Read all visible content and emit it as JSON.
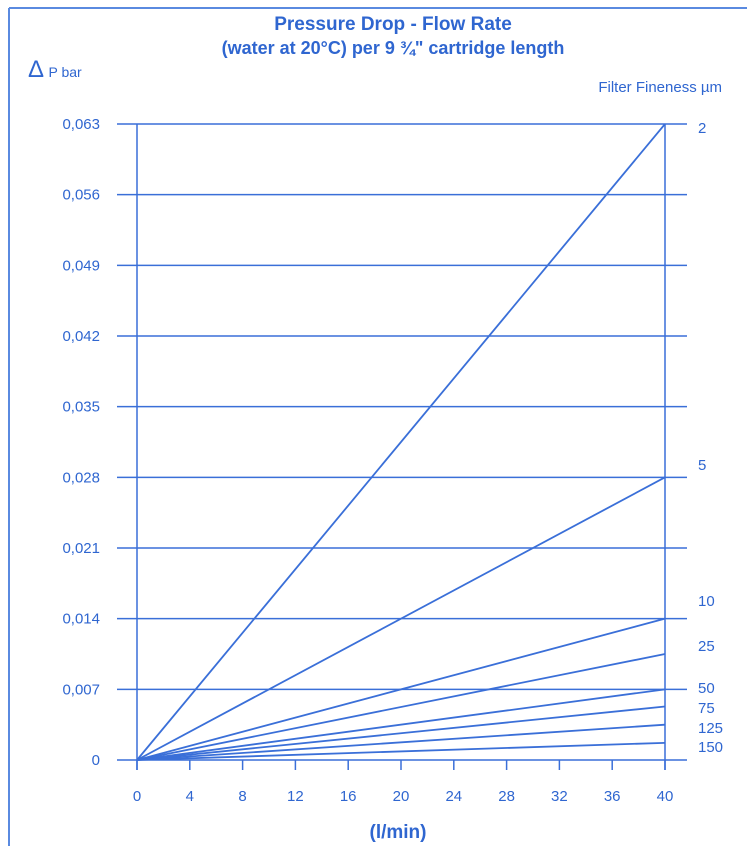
{
  "chart_data": {
    "type": "line",
    "title_line1": "Pressure Drop - Flow Rate",
    "title_line2": "(water at 20°C) per 9 ¾\" cartridge length",
    "ylabel_symbol": "Δ",
    "ylabel_text": "P bar",
    "xlabel": "(l/min)",
    "legend_title": "Filter Fineness µm",
    "xlim": [
      0,
      40
    ],
    "ylim": [
      0,
      0.063
    ],
    "x_ticks": [
      0,
      4,
      8,
      12,
      16,
      20,
      24,
      28,
      32,
      36,
      40
    ],
    "x_tick_labels": [
      "0",
      "4",
      "8",
      "12",
      "16",
      "20",
      "24",
      "28",
      "32",
      "36",
      "40"
    ],
    "y_ticks": [
      0,
      0.007,
      0.014,
      0.021,
      0.028,
      0.035,
      0.042,
      0.049,
      0.056,
      0.063
    ],
    "y_tick_labels": [
      "0",
      "0,007",
      "0,014",
      "0,021",
      "0,028",
      "0,035",
      "0,042",
      "0,049",
      "0,056",
      "0,063"
    ],
    "grid": "horizontal",
    "series": [
      {
        "name": "2",
        "x": [
          0,
          40
        ],
        "y": [
          0,
          0.063
        ]
      },
      {
        "name": "5",
        "x": [
          0,
          40
        ],
        "y": [
          0,
          0.028
        ]
      },
      {
        "name": "10",
        "x": [
          0,
          40
        ],
        "y": [
          0,
          0.014
        ]
      },
      {
        "name": "25",
        "x": [
          0,
          40
        ],
        "y": [
          0,
          0.0105
        ]
      },
      {
        "name": "50",
        "x": [
          0,
          40
        ],
        "y": [
          0,
          0.007
        ]
      },
      {
        "name": "75",
        "x": [
          0,
          40
        ],
        "y": [
          0,
          0.0053
        ]
      },
      {
        "name": "125",
        "x": [
          0,
          40
        ],
        "y": [
          0,
          0.0035
        ]
      },
      {
        "name": "150",
        "x": [
          0,
          40
        ],
        "y": [
          0,
          0.0017
        ]
      }
    ],
    "colors": {
      "line": "#3a6fd8",
      "text": "#2f66d0",
      "frame": "#5a8ae0"
    }
  }
}
